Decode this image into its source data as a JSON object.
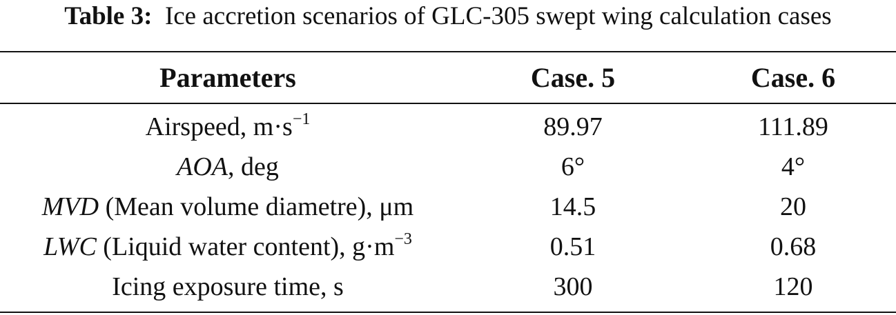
{
  "caption": {
    "label": "Table 3:",
    "text": "Ice accretion scenarios of GLC-305 swept wing calculation cases"
  },
  "table": {
    "headers": [
      "Parameters",
      "Case. 5",
      "Case. 6"
    ],
    "rows": [
      {
        "param": {
          "text": "Airspeed, m·s",
          "sup": "−1"
        },
        "case5": "89.97",
        "case6": "111.89"
      },
      {
        "param": {
          "italic": "AOA",
          "text": ", deg"
        },
        "case5": "6°",
        "case6": "4°"
      },
      {
        "param": {
          "italic": "MVD",
          "text": " (Mean volume diametre), μm"
        },
        "case5": "14.5",
        "case6": "20"
      },
      {
        "param": {
          "italic": "LWC",
          "text": " (Liquid water content), g·m",
          "sup": "−3"
        },
        "case5": "0.51",
        "case6": "0.68"
      },
      {
        "param": {
          "text": "Icing exposure time, s"
        },
        "case5": "300",
        "case6": "120"
      }
    ]
  }
}
